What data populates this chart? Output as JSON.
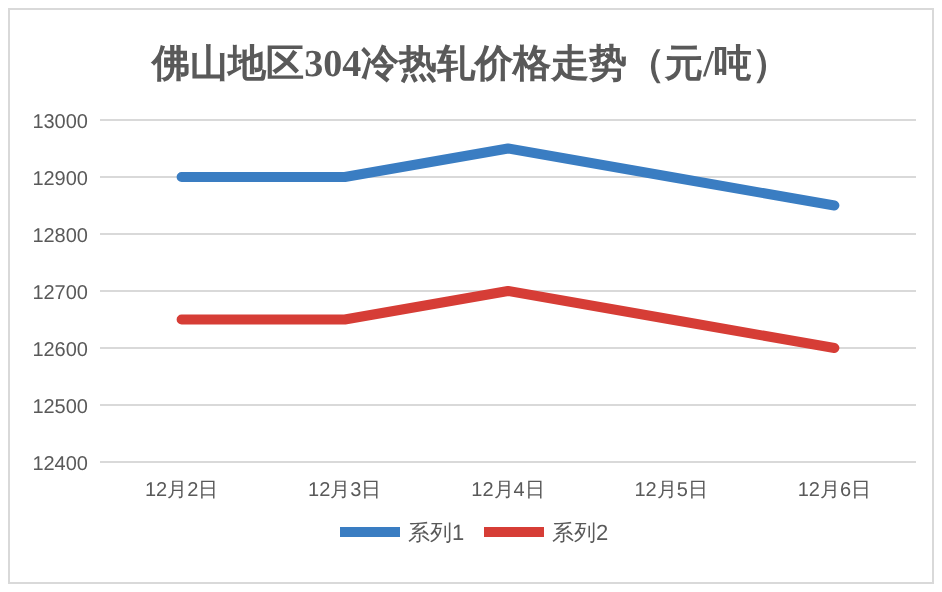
{
  "chart_data": {
    "type": "line",
    "title": "佛山地区304冷热轧价格走势（元/吨）",
    "categories": [
      "12月2日",
      "12月3日",
      "12月4日",
      "12月5日",
      "12月6日"
    ],
    "series": [
      {
        "name": "系列1",
        "color": "#3a7dc2",
        "values": [
          12900,
          12900,
          12950,
          12900,
          12850
        ]
      },
      {
        "name": "系列2",
        "color": "#d63d36",
        "values": [
          12650,
          12650,
          12700,
          12650,
          12600
        ]
      }
    ],
    "ylim": [
      12400,
      13000
    ],
    "yticks": [
      12400,
      12500,
      12600,
      12700,
      12800,
      12900,
      13000
    ],
    "grid": "y",
    "legend": "bottom"
  }
}
